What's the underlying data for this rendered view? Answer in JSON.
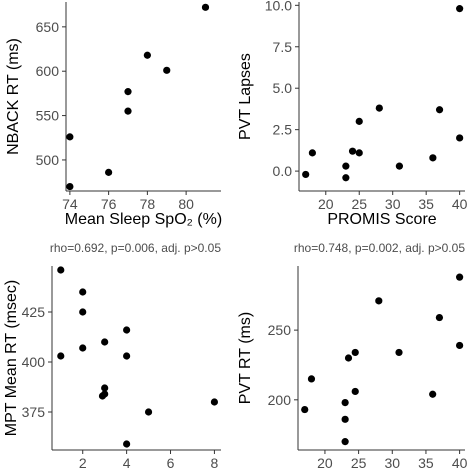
{
  "chart_data": [
    {
      "id": "nback",
      "type": "scatter",
      "xlabel": "Mean Sleep SpO₂ (%)",
      "ylabel": "NBACK RT (ms)",
      "xlim": [
        73.8,
        81.8
      ],
      "ylim": [
        465,
        678
      ],
      "xticks": [
        74,
        76,
        78,
        80
      ],
      "yticks": [
        500,
        550,
        600,
        650
      ],
      "xticklabels": [
        "74",
        "76",
        "78",
        "80"
      ],
      "yticklabels": [
        "500",
        "550",
        "600",
        "650"
      ],
      "points": [
        {
          "x": 74.0,
          "y": 470
        },
        {
          "x": 74.0,
          "y": 526
        },
        {
          "x": 76.0,
          "y": 486
        },
        {
          "x": 77.0,
          "y": 555
        },
        {
          "x": 77.0,
          "y": 577
        },
        {
          "x": 78.0,
          "y": 618
        },
        {
          "x": 79.0,
          "y": 601
        },
        {
          "x": 81.0,
          "y": 672
        }
      ],
      "annotation": ""
    },
    {
      "id": "pvt_lapses",
      "type": "scatter",
      "xlabel": "PROMIS Score",
      "ylabel": "PVT Lapses",
      "xlim": [
        16,
        40.8
      ],
      "ylim": [
        -1.2,
        10.2
      ],
      "xticks": [
        20,
        25,
        30,
        35,
        40
      ],
      "yticks": [
        0.0,
        2.5,
        5.0,
        7.5,
        10.0
      ],
      "xticklabels": [
        "20",
        "25",
        "30",
        "35",
        "40"
      ],
      "yticklabels": [
        "0.0",
        "2.5",
        "5.0",
        "7.5",
        "10.0"
      ],
      "points": [
        {
          "x": 17.0,
          "y": -0.2
        },
        {
          "x": 18.0,
          "y": 1.1
        },
        {
          "x": 23.0,
          "y": -0.4
        },
        {
          "x": 23.0,
          "y": 0.3
        },
        {
          "x": 24.0,
          "y": 1.2
        },
        {
          "x": 25.0,
          "y": 1.1
        },
        {
          "x": 25.0,
          "y": 3.0
        },
        {
          "x": 28.0,
          "y": 3.8
        },
        {
          "x": 31.0,
          "y": 0.3
        },
        {
          "x": 36.0,
          "y": 0.8
        },
        {
          "x": 37.0,
          "y": 3.7
        },
        {
          "x": 40.0,
          "y": 2.0
        },
        {
          "x": 40.0,
          "y": 9.8
        }
      ],
      "annotation": ""
    },
    {
      "id": "mpt",
      "type": "scatter",
      "xlabel": "",
      "ylabel": "MPT Mean RT (msec)",
      "xlim": [
        0.6,
        8.3
      ],
      "ylim": [
        356,
        448
      ],
      "xticks": [
        2,
        4,
        6,
        8
      ],
      "yticks": [
        375,
        400,
        425
      ],
      "xticklabels": [
        "2",
        "4",
        "6",
        "8"
      ],
      "yticklabels": [
        "375",
        "400",
        "425"
      ],
      "points": [
        {
          "x": 1.0,
          "y": 446
        },
        {
          "x": 1.0,
          "y": 403
        },
        {
          "x": 2.0,
          "y": 435
        },
        {
          "x": 2.0,
          "y": 425
        },
        {
          "x": 2.0,
          "y": 407
        },
        {
          "x": 3.0,
          "y": 410
        },
        {
          "x": 3.0,
          "y": 387
        },
        {
          "x": 3.0,
          "y": 384
        },
        {
          "x": 2.9,
          "y": 383
        },
        {
          "x": 4.0,
          "y": 416
        },
        {
          "x": 4.0,
          "y": 403
        },
        {
          "x": 4.0,
          "y": 359
        },
        {
          "x": 5.0,
          "y": 375
        },
        {
          "x": 8.0,
          "y": 380
        }
      ],
      "annotation": "rho=0.692, p=0.006, adj. p>0.05"
    },
    {
      "id": "pvt_rt",
      "type": "scatter",
      "xlabel": "",
      "ylabel": "PVT RT (ms)",
      "xlim": [
        16,
        40.8
      ],
      "ylim": [
        164,
        296
      ],
      "xticks": [
        20,
        25,
        30,
        35,
        40
      ],
      "yticks": [
        200,
        250
      ],
      "xticklabels": [
        "20",
        "25",
        "30",
        "35",
        "40"
      ],
      "yticklabels": [
        "200",
        "250"
      ],
      "points": [
        {
          "x": 17.0,
          "y": 193
        },
        {
          "x": 18.0,
          "y": 215
        },
        {
          "x": 23.0,
          "y": 170
        },
        {
          "x": 23.0,
          "y": 186
        },
        {
          "x": 23.0,
          "y": 198
        },
        {
          "x": 23.5,
          "y": 230
        },
        {
          "x": 24.5,
          "y": 234
        },
        {
          "x": 24.5,
          "y": 206
        },
        {
          "x": 28.0,
          "y": 271
        },
        {
          "x": 31.0,
          "y": 234
        },
        {
          "x": 36.0,
          "y": 204
        },
        {
          "x": 37.0,
          "y": 259
        },
        {
          "x": 40.0,
          "y": 239
        },
        {
          "x": 40.0,
          "y": 288
        }
      ],
      "annotation": "rho=0.748, p=0.002, adj. p>0.05"
    }
  ]
}
